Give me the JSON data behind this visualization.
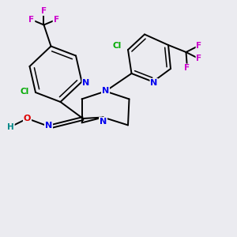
{
  "background_color": "#ebebf0",
  "bond_color": "#000000",
  "atom_colors": {
    "N": "#0000ee",
    "O": "#dd0000",
    "Cl": "#00aa00",
    "F": "#cc00cc",
    "H": "#008888"
  },
  "bond_width": 1.4,
  "figsize": [
    3.0,
    3.0
  ],
  "dpi": 100,
  "xlim": [
    0,
    10
  ],
  "ylim": [
    0,
    10
  ]
}
